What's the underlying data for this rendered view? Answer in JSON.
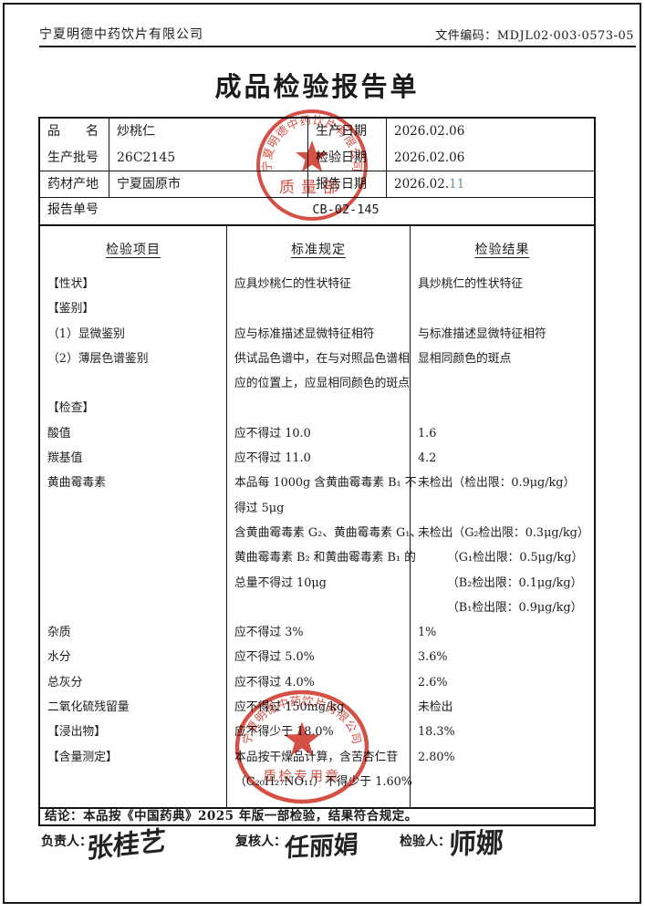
{
  "header": {
    "company": "宁夏明德中药饮片有限公司",
    "doc_code": "文件编码：MDJL02·003·0573-05"
  },
  "title": "成品检验报告单",
  "info": {
    "row1": {
      "label": "品　　名",
      "value": "炒桃仁",
      "label2": "生产日期",
      "value2": "2026.02.06"
    },
    "row2": {
      "label": "生产批号",
      "value": "26C2145",
      "label2": "检验日期",
      "value2": "2026.02.06"
    },
    "row3": {
      "label": "药材产地",
      "value": "宁夏固原市",
      "label2": "报告日期",
      "value2": "2026.02.",
      "value2_day": "11"
    },
    "report_row": {
      "label": "报告单号",
      "value": "CB-02-145"
    }
  },
  "table": {
    "headers": [
      "检验项目",
      "标准规定",
      "检验结果"
    ],
    "col_items": [
      "【性状】",
      "【鉴别】",
      "（1）显微鉴别",
      "（2）薄层色谱鉴别",
      "",
      "【检查】",
      "酸值",
      "羰基值",
      "黄曲霉毒素",
      "",
      "",
      "",
      "",
      "",
      "杂质",
      "水分",
      "总灰分",
      "二氧化硫残留量",
      "【浸出物】",
      "【含量测定】",
      ""
    ],
    "col_spec": [
      "应具炒桃仁的性状特征",
      "",
      "应与标准描述显微特征相符",
      "供试品色谱中，在与对照品色谱相",
      "应的位置上，应显相同颜色的斑点",
      "",
      "应不得过 10.0",
      "应不得过 11.0",
      "本品每 1000g 含黄曲霉毒素 B₁ 不",
      "得过 5μg",
      "含黄曲霉毒素 G₂、黄曲霉毒素 G₁、",
      "黄曲霉毒素 B₂ 和黄曲霉毒素 B₁ 的",
      "总量不得过 10μg",
      "",
      "应不得过 3%",
      "应不得过 5.0%",
      "应不得过 4.0%",
      "应不得过 150mg/kg",
      "应不得少于 18.0%",
      "本品按干燥品计算，含苦杏仁苷",
      "（C₂₀H₂₇NO₁₁）不得少于 1.60%"
    ],
    "col_result": [
      "具炒桃仁的性状特征",
      "",
      "与标准描述显微特征相符",
      "显相同颜色的斑点",
      "",
      "",
      "1.6",
      "4.2",
      "未检出（检出限：0.9μg/kg）",
      "",
      "未检出（G₂检出限：0.3μg/kg）",
      "　　　（G₁检出限：0.5μg/kg）",
      "　　　（B₂检出限：0.1μg/kg）",
      "　　　（B₁检出限：0.9μg/kg）",
      "1%",
      "3.6%",
      "2.6%",
      "未检出",
      "18.3%",
      "2.80%",
      ""
    ]
  },
  "conclusion": "结论：本品按《中国药典》2025 年版一部检验，结果符合规定。",
  "signers": {
    "resp_label": "负责人：",
    "resp_name": "张桂艺",
    "review_label": "复核人：",
    "review_name": "任丽娟",
    "inspect_label": "检验人：",
    "inspect_name": "师娜"
  },
  "stamps": {
    "ring_text_top": "宁夏明德中药饮片有限公司",
    "dept_text": "质量部",
    "ring_text_bottom": "宁夏明德中药饮片有限公司",
    "label_bottom": "质检专用章",
    "color": "#d0382b"
  }
}
